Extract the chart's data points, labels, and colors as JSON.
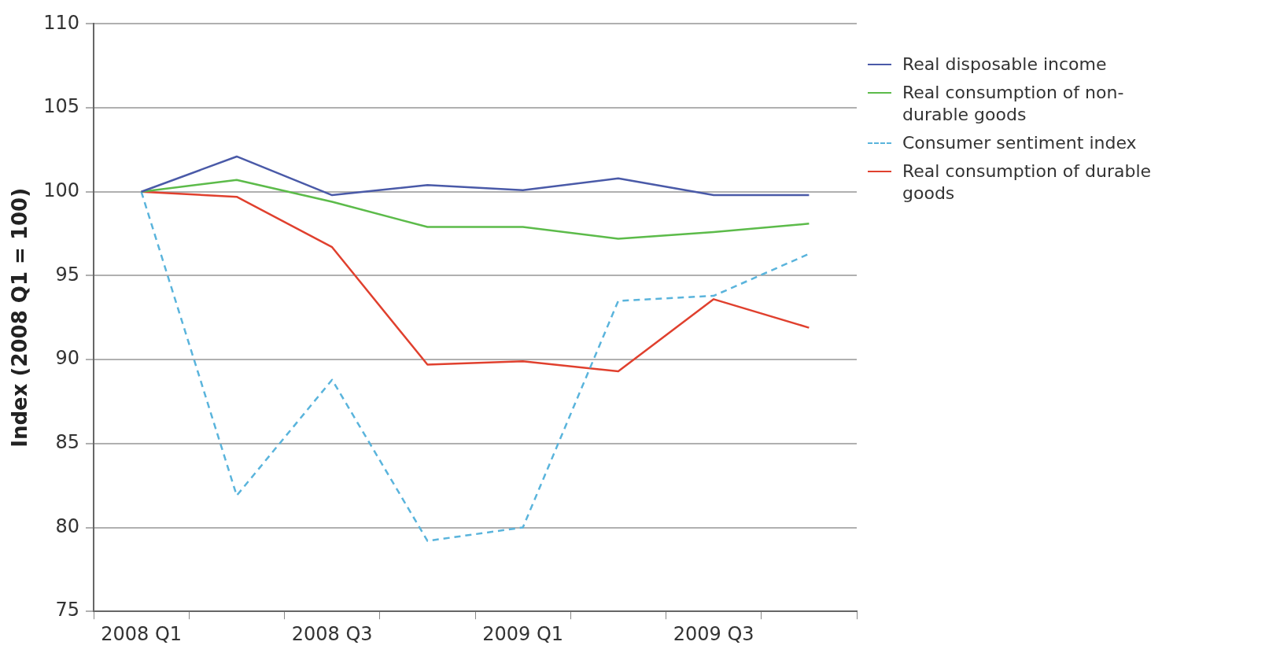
{
  "chart_data": {
    "type": "line",
    "ylabel": "Index (2008 Q1 = 100)",
    "categories": [
      "2008 Q1",
      null,
      "2008 Q3",
      null,
      "2009 Q1",
      null,
      "2009 Q3",
      null
    ],
    "series": [
      {
        "name": "Real disposable income",
        "color": "#4a5aa8",
        "values": [
          100,
          102.1,
          99.8,
          100.4,
          100.1,
          100.8,
          99.8,
          99.8
        ]
      },
      {
        "name": "Real consumption of non-durable goods",
        "color": "#5cbb4a",
        "values": [
          100,
          100.7,
          99.4,
          97.9,
          97.9,
          97.2,
          97.6,
          98.1
        ]
      },
      {
        "name": "Consumer sentiment index",
        "color": "#5ab4dc",
        "line_style": "dashed",
        "values": [
          100,
          81.9,
          88.8,
          79.2,
          80.0,
          93.5,
          93.8,
          96.3
        ]
      },
      {
        "name": "Real consumption of durable goods",
        "color": "#e0402e",
        "values": [
          100,
          99.7,
          96.7,
          89.7,
          89.9,
          89.3,
          93.6,
          91.9
        ]
      }
    ],
    "ylim": [
      75,
      110
    ],
    "yticks": [
      75,
      80,
      85,
      90,
      95,
      100,
      105,
      110
    ],
    "grid": "y",
    "legend": "right",
    "marker": "none"
  }
}
